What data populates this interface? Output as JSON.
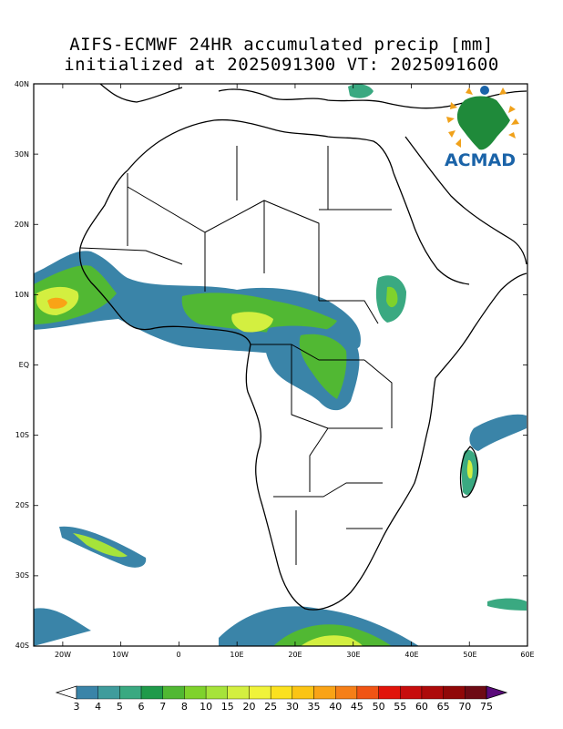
{
  "title": {
    "line1": "AIFS-ECMWF 24HR accumulated precip [mm]",
    "line2": "initialized at 2025091300 VT: 2025091600"
  },
  "logo": {
    "text": "ACMAD",
    "color": "#1a63a8"
  },
  "axes": {
    "lat_labels": [
      "40N",
      "30N",
      "20N",
      "10N",
      "EQ",
      "10S",
      "20S",
      "30S",
      "40S"
    ],
    "lon_labels": [
      "20W",
      "10W",
      "0",
      "10E",
      "20E",
      "30E",
      "40E",
      "50E",
      "60E"
    ]
  },
  "colorbar": {
    "levels": [
      "3",
      "4",
      "5",
      "6",
      "7",
      "8",
      "10",
      "15",
      "20",
      "25",
      "30",
      "35",
      "40",
      "45",
      "50",
      "55",
      "60",
      "65",
      "70",
      "75"
    ],
    "colors": [
      "#3a84a8",
      "#3f9c9c",
      "#3aa981",
      "#1f9a4a",
      "#51b833",
      "#7fd22c",
      "#a6e33a",
      "#d3ef40",
      "#f0f33a",
      "#fbe11f",
      "#fbc414",
      "#f9a316",
      "#f57f18",
      "#f05414",
      "#e1140a",
      "#c70d0d",
      "#ad0a0a",
      "#900808",
      "#6d0a14",
      "#4b0a4b"
    ],
    "under_color": "#ffffff",
    "over_color": "#5a0a7a"
  }
}
